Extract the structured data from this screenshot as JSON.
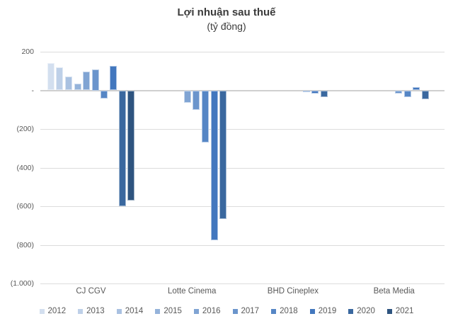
{
  "chart": {
    "title": "Lợi nhuận sau thuế",
    "subtitle": "(tỷ đồng)",
    "y_tick_labels": [
      "200",
      "-",
      "(200)",
      "(400)",
      "(600)",
      "(800)",
      "(1.000)"
    ]
  },
  "theme": {
    "gridline_color": "#dcdcdc",
    "zero_line_color": "#cfcfcf",
    "text_color": "#595959",
    "title_color": "#3b3b3b",
    "background": "#ffffff"
  },
  "chart_data": {
    "type": "bar",
    "title": "Lợi nhuận sau thuế",
    "subtitle": "(tỷ đồng)",
    "ylabel": "tỷ đồng",
    "ylim": [
      -1000,
      200
    ],
    "grid_interval": 200,
    "grid": true,
    "legend_position": "bottom",
    "categories": [
      "CJ CGV",
      "Lotte Cinema",
      "BHD Cineplex",
      "Beta Media"
    ],
    "series": [
      {
        "name": "2012",
        "color": "#d3dfef",
        "values": [
          140,
          null,
          null,
          null
        ]
      },
      {
        "name": "2013",
        "color": "#bed0e8",
        "values": [
          120,
          null,
          null,
          null
        ]
      },
      {
        "name": "2014",
        "color": "#a9c1e1",
        "values": [
          72,
          null,
          null,
          null
        ]
      },
      {
        "name": "2015",
        "color": "#95b3da",
        "values": [
          36,
          null,
          null,
          null
        ]
      },
      {
        "name": "2016",
        "color": "#80a4d3",
        "values": [
          96,
          -65,
          null,
          null
        ]
      },
      {
        "name": "2017",
        "color": "#6b95cc",
        "values": [
          110,
          -102,
          null,
          -16
        ]
      },
      {
        "name": "2018",
        "color": "#5686c5",
        "values": [
          -42,
          -268,
          -8,
          -34
        ]
      },
      {
        "name": "2019",
        "color": "#4277be",
        "values": [
          125,
          -775,
          -15,
          18
        ]
      },
      {
        "name": "2020",
        "color": "#3a689f",
        "values": [
          -598,
          -667,
          -34,
          -45
        ]
      },
      {
        "name": "2021",
        "color": "#2e547f",
        "values": [
          -572,
          null,
          null,
          null
        ]
      }
    ]
  }
}
